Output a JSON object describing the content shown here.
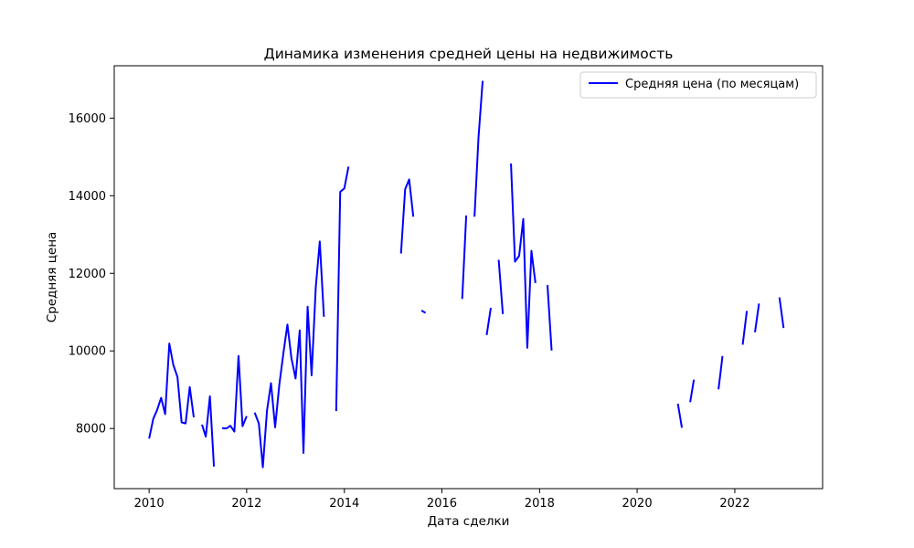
{
  "chart_data": {
    "type": "line",
    "title": "Динамика изменения средней цены на недвижимость",
    "xlabel": "Дата сделки",
    "ylabel": "Средняя цена",
    "xlim": [
      "2009-04-15",
      "2023-10-20"
    ],
    "ylim": [
      6450,
      17350
    ],
    "x_ticks": [
      "2010-01-01",
      "2012-01-01",
      "2014-01-01",
      "2016-01-01",
      "2018-01-01",
      "2020-01-01",
      "2022-01-01"
    ],
    "x_tick_labels": [
      "2010",
      "2012",
      "2014",
      "2016",
      "2018",
      "2020",
      "2022"
    ],
    "y_ticks": [
      8000,
      10000,
      12000,
      14000,
      16000
    ],
    "y_tick_labels": [
      "8000",
      "10000",
      "12000",
      "14000",
      "16000"
    ],
    "grid": false,
    "legend": {
      "position": "top-right",
      "entries": [
        "Средняя цена (по месяцам)"
      ]
    },
    "series": [
      {
        "name": "Средняя цена (по месяцам)",
        "color": "#0000ff",
        "segments": [
          [
            [
              "2010-01-01",
              7740
            ],
            [
              "2010-02-01",
              8250
            ],
            [
              "2010-03-01",
              8470
            ],
            [
              "2010-04-01",
              8790
            ],
            [
              "2010-05-01",
              8370
            ],
            [
              "2010-06-01",
              10190
            ],
            [
              "2010-07-01",
              9640
            ],
            [
              "2010-08-01",
              9330
            ],
            [
              "2010-09-01",
              8160
            ],
            [
              "2010-10-01",
              8130
            ],
            [
              "2010-11-01",
              9070
            ],
            [
              "2010-12-01",
              8290
            ]
          ],
          [
            [
              "2011-02-01",
              8100
            ],
            [
              "2011-03-01",
              7790
            ],
            [
              "2011-04-01",
              8830
            ],
            [
              "2011-05-01",
              7020
            ]
          ],
          [
            [
              "2011-07-01",
              8010
            ],
            [
              "2011-08-01",
              8000
            ],
            [
              "2011-09-01",
              8070
            ],
            [
              "2011-10-01",
              7920
            ],
            [
              "2011-11-01",
              9870
            ],
            [
              "2011-12-01",
              8060
            ],
            [
              "2012-01-01",
              8320
            ]
          ],
          [
            [
              "2012-03-01",
              8410
            ],
            [
              "2012-04-01",
              8130
            ],
            [
              "2012-05-01",
              7000
            ],
            [
              "2012-06-01",
              8460
            ],
            [
              "2012-07-01",
              9170
            ],
            [
              "2012-08-01",
              8030
            ],
            [
              "2012-09-01",
              9120
            ],
            [
              "2012-10-01",
              9920
            ],
            [
              "2012-11-01",
              10680
            ],
            [
              "2012-12-01",
              9810
            ],
            [
              "2013-01-01",
              9290
            ],
            [
              "2013-02-01",
              10530
            ],
            [
              "2013-03-01",
              7370
            ],
            [
              "2013-04-01",
              11140
            ],
            [
              "2013-05-01",
              9370
            ],
            [
              "2013-06-01",
              11640
            ],
            [
              "2013-07-01",
              12820
            ],
            [
              "2013-08-01",
              10880
            ]
          ],
          [
            [
              "2013-11-01",
              8450
            ],
            [
              "2013-12-01",
              14100
            ],
            [
              "2014-01-01",
              14190
            ],
            [
              "2014-02-01",
              14750
            ]
          ],
          [
            [
              "2015-03-01",
              12510
            ],
            [
              "2015-04-01",
              14170
            ],
            [
              "2015-05-01",
              14420
            ],
            [
              "2015-06-01",
              13460
            ]
          ],
          [
            [
              "2015-08-01",
              11040
            ],
            [
              "2015-09-01",
              10980
            ]
          ],
          [
            [
              "2016-06-01",
              11340
            ],
            [
              "2016-07-01",
              13490
            ]
          ],
          [
            [
              "2016-09-01",
              13460
            ],
            [
              "2016-10-01",
              15510
            ],
            [
              "2016-11-01",
              16960
            ]
          ],
          [
            [
              "2016-12-01",
              10410
            ],
            [
              "2017-01-01",
              11110
            ]
          ],
          [
            [
              "2017-03-01",
              12350
            ],
            [
              "2017-04-01",
              10950
            ]
          ],
          [
            [
              "2017-06-01",
              14830
            ],
            [
              "2017-07-01",
              12300
            ],
            [
              "2017-08-01",
              12450
            ],
            [
              "2017-09-01",
              13400
            ],
            [
              "2017-10-01",
              10080
            ],
            [
              "2017-11-01",
              12580
            ],
            [
              "2017-12-01",
              11750
            ]
          ],
          [
            [
              "2018-03-01",
              11700
            ],
            [
              "2018-04-01",
              10010
            ]
          ],
          [
            [
              "2020-11-01",
              8640
            ],
            [
              "2020-12-01",
              8020
            ]
          ],
          [
            [
              "2021-02-01",
              8680
            ],
            [
              "2021-03-01",
              9260
            ]
          ],
          [
            [
              "2021-09-01",
              9010
            ],
            [
              "2021-10-01",
              9870
            ]
          ],
          [
            [
              "2022-03-01",
              10160
            ],
            [
              "2022-04-01",
              11030
            ]
          ],
          [
            [
              "2022-06-01",
              10480
            ],
            [
              "2022-07-01",
              11220
            ]
          ],
          [
            [
              "2022-12-01",
              11380
            ],
            [
              "2023-01-01",
              10590
            ]
          ]
        ]
      }
    ]
  }
}
